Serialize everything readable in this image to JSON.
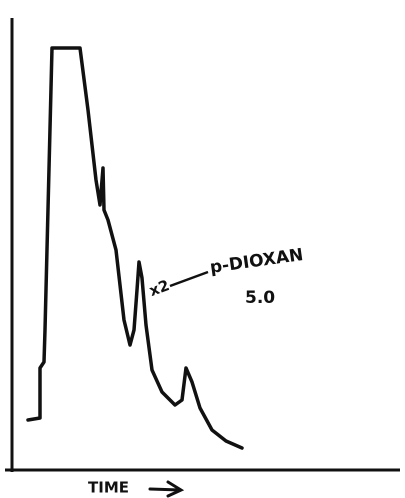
{
  "annotations": {
    "peak_label": "p-DIOXAN",
    "peak_value": "5.0",
    "scale_factor": "x2"
  },
  "x_axis": {
    "label": "TIME"
  }
}
